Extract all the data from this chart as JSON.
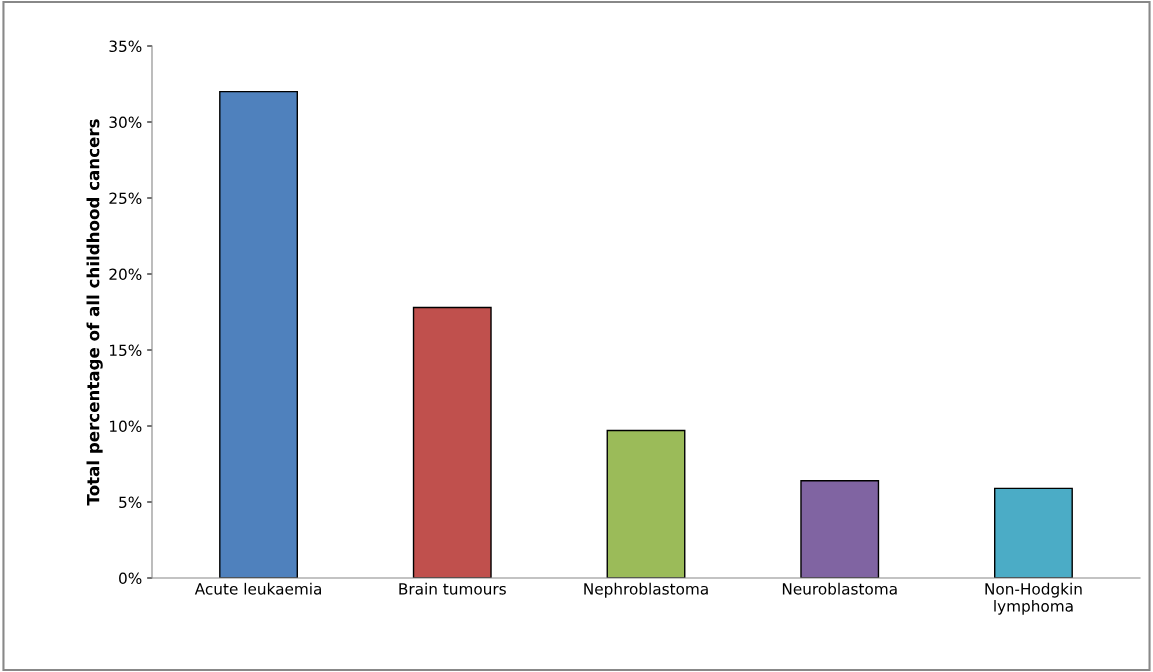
{
  "chart_data": {
    "type": "bar",
    "ylabel": "Total percentage of all childhood cancers",
    "categories": [
      "Acute leukaemia",
      "Brain tumours",
      "Nephroblastoma",
      "Neuroblastoma",
      "Non-Hodgkin\nlymphoma"
    ],
    "values": [
      32.0,
      17.8,
      9.7,
      6.4,
      5.9
    ],
    "colors": [
      "#4f81bd",
      "#c0504d",
      "#9bbb59",
      "#8064a2",
      "#4bacc6"
    ],
    "ylim": [
      0,
      35
    ],
    "yticks": [
      {
        "value": 0,
        "label": "0%"
      },
      {
        "value": 5,
        "label": "5%"
      },
      {
        "value": 10,
        "label": "10%"
      },
      {
        "value": 15,
        "label": "15%"
      },
      {
        "value": 20,
        "label": "20%"
      },
      {
        "value": 25,
        "label": "25%"
      },
      {
        "value": 30,
        "label": "30%"
      },
      {
        "value": 35,
        "label": "35%"
      }
    ],
    "grid": false,
    "legend": false
  }
}
